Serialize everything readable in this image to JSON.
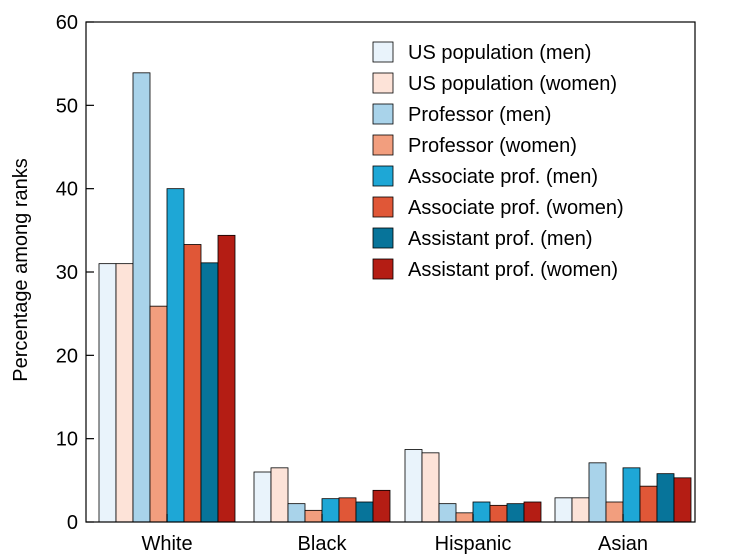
{
  "chart_data": {
    "type": "bar",
    "title": "",
    "xlabel": "",
    "ylabel": "Percentage among ranks",
    "ylim": [
      0,
      60
    ],
    "yticks": [
      0,
      10,
      20,
      30,
      40,
      50,
      60
    ],
    "grid": false,
    "legend_position": "top-right",
    "categories": [
      "White",
      "Black",
      "Hispanic",
      "Asian"
    ],
    "series": [
      {
        "name": "US population (men)",
        "color": "#e9f3fb",
        "values": [
          31.0,
          6.0,
          8.7,
          2.9
        ]
      },
      {
        "name": "US population (women)",
        "color": "#fde3d8",
        "values": [
          31.0,
          6.5,
          8.3,
          2.9
        ]
      },
      {
        "name": "Professor (men)",
        "color": "#a9d3ea",
        "values": [
          53.9,
          2.2,
          2.2,
          7.1
        ]
      },
      {
        "name": "Professor (women)",
        "color": "#f29e7e",
        "values": [
          25.9,
          1.4,
          1.1,
          2.4
        ]
      },
      {
        "name": "Associate prof. (men)",
        "color": "#1ea7d6",
        "values": [
          40.0,
          2.8,
          2.4,
          6.5
        ]
      },
      {
        "name": "Associate prof. (women)",
        "color": "#e05737",
        "values": [
          33.3,
          2.9,
          2.0,
          4.3
        ]
      },
      {
        "name": "Assistant prof. (men)",
        "color": "#07749a",
        "values": [
          31.1,
          2.4,
          2.2,
          5.8
        ]
      },
      {
        "name": "Assistant prof. (women)",
        "color": "#b41d14",
        "values": [
          34.4,
          3.8,
          2.4,
          5.3
        ]
      }
    ]
  }
}
